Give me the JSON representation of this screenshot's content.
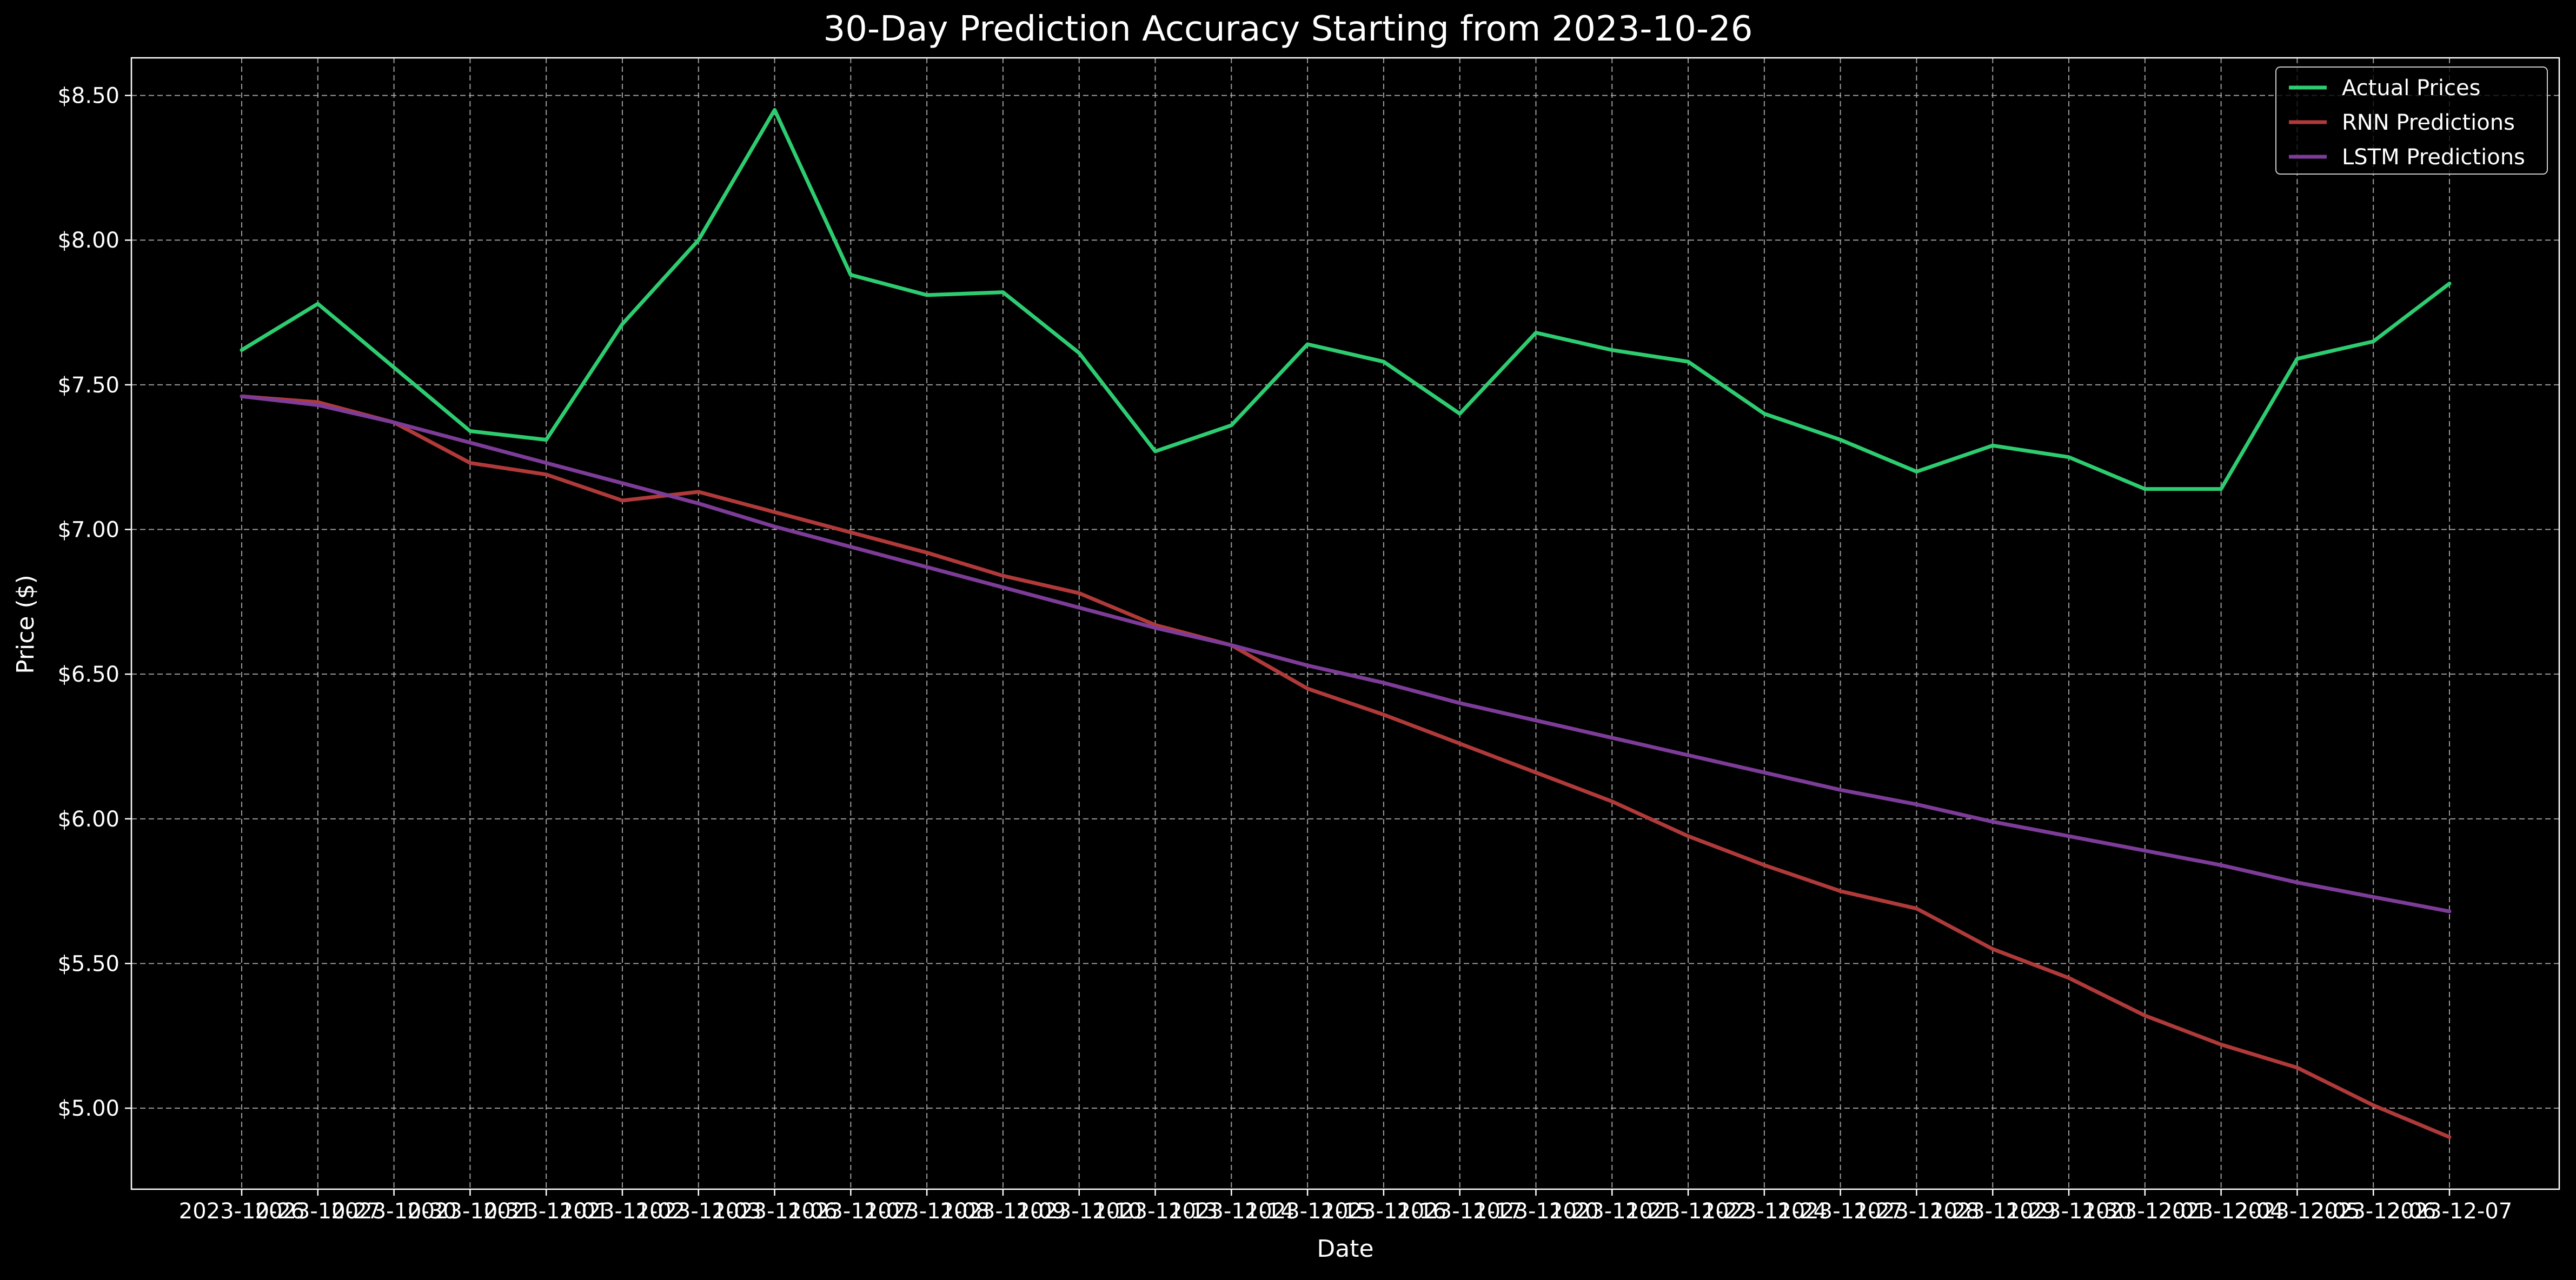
{
  "chart_data": {
    "type": "line",
    "title": "30-Day Prediction Accuracy Starting from 2023-10-26",
    "xlabel": "Date",
    "ylabel": "Price ($)",
    "ylim": [
      4.72,
      8.63
    ],
    "yticks": [
      5.0,
      5.5,
      6.0,
      6.5,
      7.0,
      7.5,
      8.0,
      8.5
    ],
    "ytick_labels": [
      "$5.00",
      "$5.50",
      "$6.00",
      "$6.50",
      "$7.00",
      "$7.50",
      "$8.00",
      "$8.50"
    ],
    "grid": true,
    "legend_position": "top-right",
    "x": [
      "2023-10-26",
      "2023-10-27",
      "2023-10-30",
      "2023-10-31",
      "2023-11-01",
      "2023-11-02",
      "2023-11-03",
      "2023-11-06",
      "2023-11-07",
      "2023-11-08",
      "2023-11-09",
      "2023-11-10",
      "2023-11-13",
      "2023-11-14",
      "2023-11-15",
      "2023-11-16",
      "2023-11-17",
      "2023-11-20",
      "2023-11-21",
      "2023-11-22",
      "2023-11-24",
      "2023-11-27",
      "2023-11-28",
      "2023-11-29",
      "2023-11-30",
      "2023-12-01",
      "2023-12-04",
      "2023-12-05",
      "2023-12-06",
      "2023-12-07"
    ],
    "series": [
      {
        "name": "Actual Prices",
        "color": "#2ecc71",
        "values": [
          7.62,
          7.78,
          7.56,
          7.34,
          7.31,
          7.71,
          8.0,
          8.45,
          7.88,
          7.81,
          7.82,
          7.61,
          7.27,
          7.36,
          7.64,
          7.58,
          7.4,
          7.68,
          7.62,
          7.58,
          7.4,
          7.31,
          7.2,
          7.29,
          7.25,
          7.14,
          7.14,
          7.59,
          7.65,
          7.85
        ]
      },
      {
        "name": "RNN Predictions",
        "color": "#b03a3a",
        "values": [
          7.46,
          7.44,
          7.37,
          7.23,
          7.19,
          7.1,
          7.13,
          7.06,
          6.99,
          6.92,
          6.84,
          6.78,
          6.67,
          6.6,
          6.45,
          6.36,
          6.26,
          6.16,
          6.06,
          5.94,
          5.84,
          5.75,
          5.69,
          5.55,
          5.45,
          5.32,
          5.22,
          5.14,
          5.01,
          4.9
        ]
      },
      {
        "name": "LSTM Predictions",
        "color": "#7d3c98",
        "values": [
          7.46,
          7.43,
          7.37,
          7.3,
          7.23,
          7.16,
          7.09,
          7.01,
          6.94,
          6.87,
          6.8,
          6.73,
          6.66,
          6.6,
          6.53,
          6.47,
          6.4,
          6.34,
          6.28,
          6.22,
          6.16,
          6.1,
          6.05,
          5.99,
          5.94,
          5.89,
          5.84,
          5.78,
          5.73,
          5.68
        ]
      }
    ]
  }
}
